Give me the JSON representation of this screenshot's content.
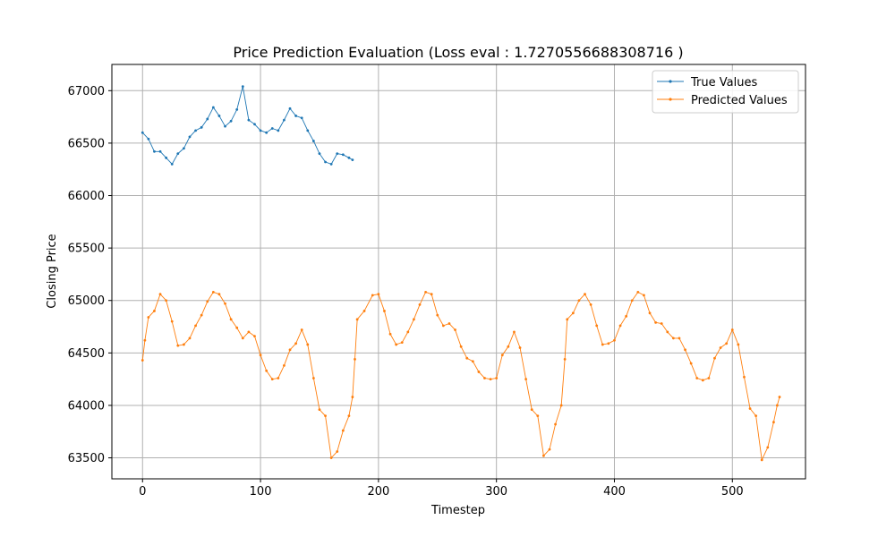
{
  "chart_data": {
    "type": "line",
    "title": "Price Prediction Evaluation (Loss eval : 1.7270556688308716 )",
    "xlabel": "Timestep",
    "ylabel": "Closing Price",
    "xlim": [
      -26,
      562
    ],
    "ylim": [
      63300,
      67250
    ],
    "xticks": [
      0,
      100,
      200,
      300,
      400,
      500
    ],
    "yticks": [
      63500,
      64000,
      64500,
      65000,
      65500,
      66000,
      66500,
      67000
    ],
    "grid": true,
    "legend_position": "top-right",
    "series": [
      {
        "name": "True Values",
        "color": "#1f77b4",
        "points": [
          [
            0,
            66600
          ],
          [
            5,
            66540
          ],
          [
            10,
            66420
          ],
          [
            15,
            66420
          ],
          [
            20,
            66360
          ],
          [
            25,
            66300
          ],
          [
            30,
            66400
          ],
          [
            35,
            66450
          ],
          [
            40,
            66560
          ],
          [
            45,
            66620
          ],
          [
            50,
            66650
          ],
          [
            55,
            66730
          ],
          [
            60,
            66840
          ],
          [
            65,
            66760
          ],
          [
            70,
            66660
          ],
          [
            75,
            66710
          ],
          [
            80,
            66820
          ],
          [
            85,
            67040
          ],
          [
            90,
            66720
          ],
          [
            95,
            66680
          ],
          [
            100,
            66620
          ],
          [
            105,
            66600
          ],
          [
            110,
            66640
          ],
          [
            115,
            66620
          ],
          [
            120,
            66720
          ],
          [
            125,
            66830
          ],
          [
            130,
            66760
          ],
          [
            135,
            66740
          ],
          [
            140,
            66620
          ],
          [
            145,
            66520
          ],
          [
            150,
            66400
          ],
          [
            155,
            66320
          ],
          [
            160,
            66300
          ],
          [
            165,
            66400
          ],
          [
            170,
            66390
          ],
          [
            175,
            66360
          ],
          [
            178,
            66340
          ]
        ]
      },
      {
        "name": "Predicted Values",
        "color": "#ff7f0e",
        "points": [
          [
            0,
            64430
          ],
          [
            2,
            64620
          ],
          [
            5,
            64840
          ],
          [
            10,
            64900
          ],
          [
            15,
            65060
          ],
          [
            20,
            65000
          ],
          [
            25,
            64800
          ],
          [
            30,
            64570
          ],
          [
            35,
            64580
          ],
          [
            40,
            64640
          ],
          [
            45,
            64760
          ],
          [
            50,
            64860
          ],
          [
            55,
            64990
          ],
          [
            60,
            65080
          ],
          [
            65,
            65060
          ],
          [
            70,
            64970
          ],
          [
            75,
            64820
          ],
          [
            80,
            64740
          ],
          [
            85,
            64640
          ],
          [
            90,
            64700
          ],
          [
            95,
            64660
          ],
          [
            100,
            64480
          ],
          [
            105,
            64330
          ],
          [
            110,
            64250
          ],
          [
            115,
            64260
          ],
          [
            120,
            64380
          ],
          [
            125,
            64530
          ],
          [
            130,
            64590
          ],
          [
            135,
            64720
          ],
          [
            140,
            64580
          ],
          [
            145,
            64260
          ],
          [
            150,
            63960
          ],
          [
            155,
            63900
          ],
          [
            160,
            63500
          ],
          [
            165,
            63560
          ],
          [
            170,
            63760
          ],
          [
            175,
            63900
          ],
          [
            178,
            64080
          ],
          [
            180,
            64440
          ],
          [
            182,
            64820
          ],
          [
            188,
            64900
          ],
          [
            195,
            65050
          ],
          [
            200,
            65060
          ],
          [
            205,
            64900
          ],
          [
            210,
            64680
          ],
          [
            215,
            64580
          ],
          [
            220,
            64600
          ],
          [
            225,
            64700
          ],
          [
            230,
            64820
          ],
          [
            235,
            64960
          ],
          [
            240,
            65080
          ],
          [
            245,
            65060
          ],
          [
            250,
            64860
          ],
          [
            255,
            64760
          ],
          [
            260,
            64780
          ],
          [
            265,
            64720
          ],
          [
            270,
            64560
          ],
          [
            275,
            64450
          ],
          [
            280,
            64420
          ],
          [
            285,
            64320
          ],
          [
            290,
            64260
          ],
          [
            295,
            64250
          ],
          [
            300,
            64260
          ],
          [
            305,
            64480
          ],
          [
            310,
            64560
          ],
          [
            315,
            64700
          ],
          [
            320,
            64550
          ],
          [
            325,
            64250
          ],
          [
            330,
            63960
          ],
          [
            335,
            63900
          ],
          [
            340,
            63520
          ],
          [
            345,
            63580
          ],
          [
            350,
            63820
          ],
          [
            355,
            64000
          ],
          [
            358,
            64440
          ],
          [
            360,
            64820
          ],
          [
            365,
            64880
          ],
          [
            370,
            65000
          ],
          [
            375,
            65060
          ],
          [
            380,
            64960
          ],
          [
            385,
            64760
          ],
          [
            390,
            64580
          ],
          [
            395,
            64590
          ],
          [
            400,
            64620
          ],
          [
            405,
            64760
          ],
          [
            410,
            64850
          ],
          [
            415,
            65000
          ],
          [
            420,
            65080
          ],
          [
            425,
            65050
          ],
          [
            430,
            64880
          ],
          [
            435,
            64790
          ],
          [
            440,
            64780
          ],
          [
            445,
            64700
          ],
          [
            450,
            64640
          ],
          [
            455,
            64640
          ],
          [
            460,
            64530
          ],
          [
            465,
            64400
          ],
          [
            470,
            64260
          ],
          [
            475,
            64240
          ],
          [
            480,
            64260
          ],
          [
            485,
            64450
          ],
          [
            490,
            64550
          ],
          [
            495,
            64590
          ],
          [
            500,
            64720
          ],
          [
            505,
            64580
          ],
          [
            510,
            64270
          ],
          [
            515,
            63970
          ],
          [
            520,
            63900
          ],
          [
            525,
            63480
          ],
          [
            530,
            63600
          ],
          [
            535,
            63840
          ],
          [
            538,
            64000
          ],
          [
            540,
            64080
          ]
        ]
      }
    ]
  }
}
